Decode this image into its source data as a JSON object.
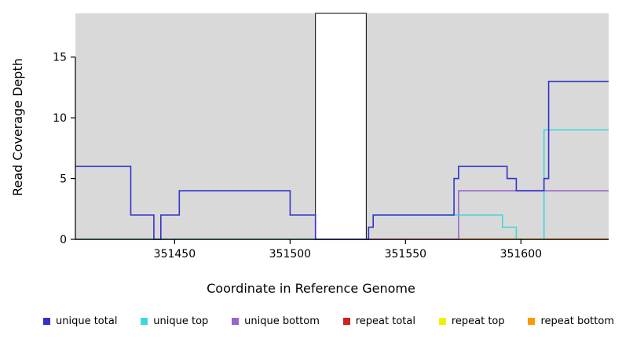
{
  "chart_data": {
    "type": "line",
    "title": "",
    "xlabel": "Coordinate in Reference Genome",
    "ylabel": "Read Coverage Depth",
    "xlim": [
      351407,
      351638
    ],
    "ylim": [
      0,
      18.6
    ],
    "x_ticks": [
      351450,
      351500,
      351550,
      351600
    ],
    "y_ticks": [
      0,
      5,
      10,
      15
    ],
    "grid": false,
    "legend_position": "bottom",
    "background_regions": [
      {
        "name": "shaded-region-left",
        "x0": 351407,
        "x1": 351511,
        "color": "#d9d9d9"
      },
      {
        "name": "shaded-region-right",
        "x0": 351533,
        "x1": 351638,
        "color": "#d9d9d9"
      }
    ],
    "gap_region": {
      "name": "unshaded-gap",
      "x0": 351511,
      "x1": 351533,
      "fill": "#ffffff",
      "border": "#000000"
    },
    "series": [
      {
        "name": "repeat total",
        "color": "#cc2222",
        "step_points": [
          [
            351407,
            0
          ],
          [
            351638,
            0
          ]
        ]
      },
      {
        "name": "repeat top",
        "color": "#f0f000",
        "step_points": [
          [
            351407,
            0
          ],
          [
            351511,
            0
          ]
        ]
      },
      {
        "name": "unique bottom",
        "color": "#9966cc",
        "step_points": [
          [
            351407,
            0
          ],
          [
            351573,
            0
          ],
          [
            351573,
            4
          ],
          [
            351638,
            4
          ]
        ]
      },
      {
        "name": "unique top",
        "color": "#3fd8d8",
        "step_points": [
          [
            351407,
            0
          ],
          [
            351534,
            0
          ],
          [
            351534,
            1
          ],
          [
            351536,
            1
          ],
          [
            351536,
            2
          ],
          [
            351592,
            2
          ],
          [
            351592,
            1
          ],
          [
            351598,
            1
          ],
          [
            351598,
            0
          ],
          [
            351610,
            0
          ],
          [
            351610,
            9
          ],
          [
            351638,
            9
          ]
        ]
      },
      {
        "name": "repeat bottom",
        "color": "#ff9900",
        "step_points": [
          [
            351573,
            0
          ],
          [
            351638,
            0
          ]
        ]
      },
      {
        "name": "unique total",
        "color": "#3333cc",
        "step_points": [
          [
            351407,
            6
          ],
          [
            351431,
            6
          ],
          [
            351431,
            2
          ],
          [
            351441,
            2
          ],
          [
            351441,
            0
          ],
          [
            351444,
            0
          ],
          [
            351444,
            2
          ],
          [
            351452,
            2
          ],
          [
            351452,
            4
          ],
          [
            351500,
            4
          ],
          [
            351500,
            2
          ],
          [
            351511,
            2
          ],
          [
            351511,
            0
          ],
          [
            351534,
            0
          ],
          [
            351534,
            1
          ],
          [
            351536,
            1
          ],
          [
            351536,
            2
          ],
          [
            351571,
            2
          ],
          [
            351571,
            5
          ],
          [
            351573,
            5
          ],
          [
            351573,
            6
          ],
          [
            351594,
            6
          ],
          [
            351594,
            5
          ],
          [
            351598,
            5
          ],
          [
            351598,
            4
          ],
          [
            351610,
            4
          ],
          [
            351610,
            5
          ],
          [
            351612,
            5
          ],
          [
            351612,
            13
          ],
          [
            351638,
            13
          ]
        ]
      }
    ]
  },
  "legend": {
    "items": [
      {
        "label": "unique total",
        "color": "#3333cc"
      },
      {
        "label": "unique top",
        "color": "#3fd8d8"
      },
      {
        "label": "unique bottom",
        "color": "#9966cc"
      },
      {
        "label": "repeat total",
        "color": "#cc2222"
      },
      {
        "label": "repeat top",
        "color": "#f0f000"
      },
      {
        "label": "repeat bottom",
        "color": "#ff9900"
      }
    ]
  }
}
